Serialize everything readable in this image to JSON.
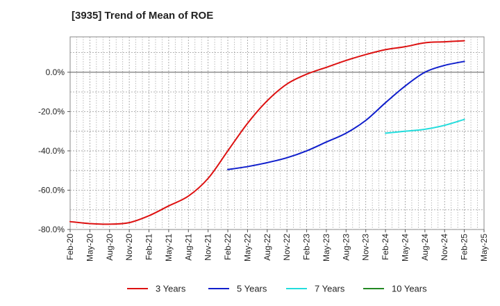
{
  "chart_data": {
    "type": "line",
    "title": "[3935]  Trend of Mean of ROE",
    "xlabel": "",
    "ylabel": "",
    "ylim": [
      -80,
      18
    ],
    "y_ticks": [
      0,
      -20,
      -40,
      -60,
      -80
    ],
    "y_tick_labels": [
      "0.0%",
      "-20.0%",
      "-40.0%",
      "-60.0%",
      "-80.0%"
    ],
    "x_tick_labels": [
      "Feb-20",
      "May-20",
      "Aug-20",
      "Nov-20",
      "Feb-21",
      "May-21",
      "Aug-21",
      "Nov-21",
      "Feb-22",
      "May-22",
      "Aug-22",
      "Nov-22",
      "Feb-23",
      "May-23",
      "Aug-23",
      "Nov-23",
      "Feb-24",
      "May-24",
      "Aug-24",
      "Nov-24",
      "Feb-25",
      "May-25"
    ],
    "grid": true,
    "legend_position": "bottom",
    "series": [
      {
        "name": "3 Years",
        "color": "#dd1111",
        "x": [
          0,
          1,
          2,
          3,
          4,
          5,
          6,
          7,
          8,
          9,
          10,
          11,
          12,
          13,
          14,
          15,
          16,
          17,
          18,
          19,
          20
        ],
        "values": [
          -76,
          -77,
          -77.3,
          -76.5,
          -73,
          -68,
          -63,
          -54,
          -40,
          -26,
          -14.5,
          -6,
          -1,
          2.5,
          6,
          9,
          11.5,
          13,
          15,
          15.5,
          16
        ]
      },
      {
        "name": "5 Years",
        "color": "#0f1ecc",
        "x": [
          8,
          9,
          10,
          11,
          12,
          13,
          14,
          15,
          16,
          17,
          18,
          19,
          20
        ],
        "values": [
          -49.5,
          -48,
          -46,
          -43.5,
          -40,
          -35.5,
          -31,
          -24.5,
          -15.5,
          -7,
          0,
          3.5,
          5.5
        ]
      },
      {
        "name": "7 Years",
        "color": "#22dddd",
        "x": [
          16,
          17,
          18,
          19,
          20
        ],
        "values": [
          -31,
          -30,
          -29,
          -27,
          -24
        ]
      },
      {
        "name": "10 Years",
        "color": "#228822",
        "x": [],
        "values": []
      }
    ]
  }
}
